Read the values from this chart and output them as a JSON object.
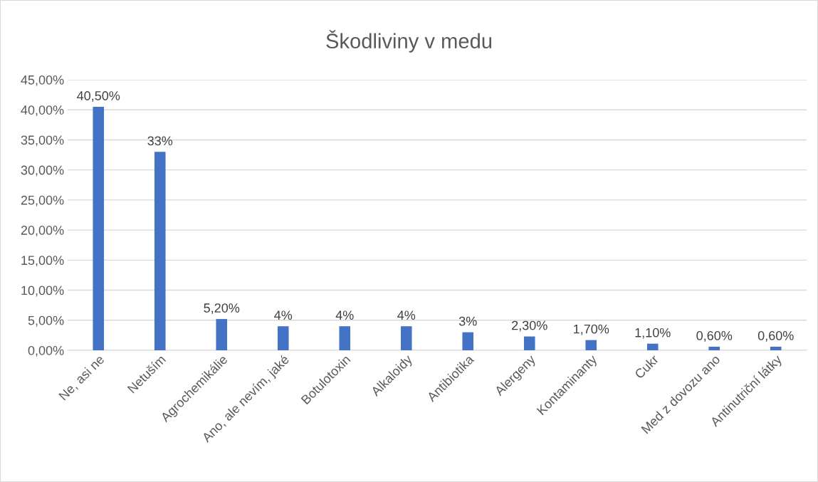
{
  "chart_data": {
    "type": "bar",
    "title": "Škodliviny v medu",
    "categories": [
      "Ne, asi ne",
      "Netuším",
      "Agrochemikálie",
      "Ano, ale nevím, jaké",
      "Botulotoxin",
      "Alkaloidy",
      "Antibiotika",
      "Alergeny",
      "Kontaminanty",
      "Cukr",
      "Med z dovozu ano",
      "Antinutriční látky"
    ],
    "values": [
      40.5,
      33,
      5.2,
      4,
      4,
      4,
      3,
      2.3,
      1.7,
      1.1,
      0.6,
      0.6
    ],
    "value_labels": [
      "40,50%",
      "33%",
      "5,20%",
      "4%",
      "4%",
      "4%",
      "3%",
      "2,30%",
      "1,70%",
      "1,10%",
      "0,60%",
      "0,60%"
    ],
    "color": "#4472c4",
    "ylim": [
      0,
      45
    ],
    "yticks": [
      {
        "value": 0,
        "label": "0,00%"
      },
      {
        "value": 5,
        "label": "5,00%"
      },
      {
        "value": 10,
        "label": "10,00%"
      },
      {
        "value": 15,
        "label": "15,00%"
      },
      {
        "value": 20,
        "label": "20,00%"
      },
      {
        "value": 25,
        "label": "25,00%"
      },
      {
        "value": 30,
        "label": "30,00%"
      },
      {
        "value": 35,
        "label": "35,00%"
      },
      {
        "value": 40,
        "label": "40,00%"
      },
      {
        "value": 45,
        "label": "45,00%"
      }
    ],
    "grid": "y"
  }
}
